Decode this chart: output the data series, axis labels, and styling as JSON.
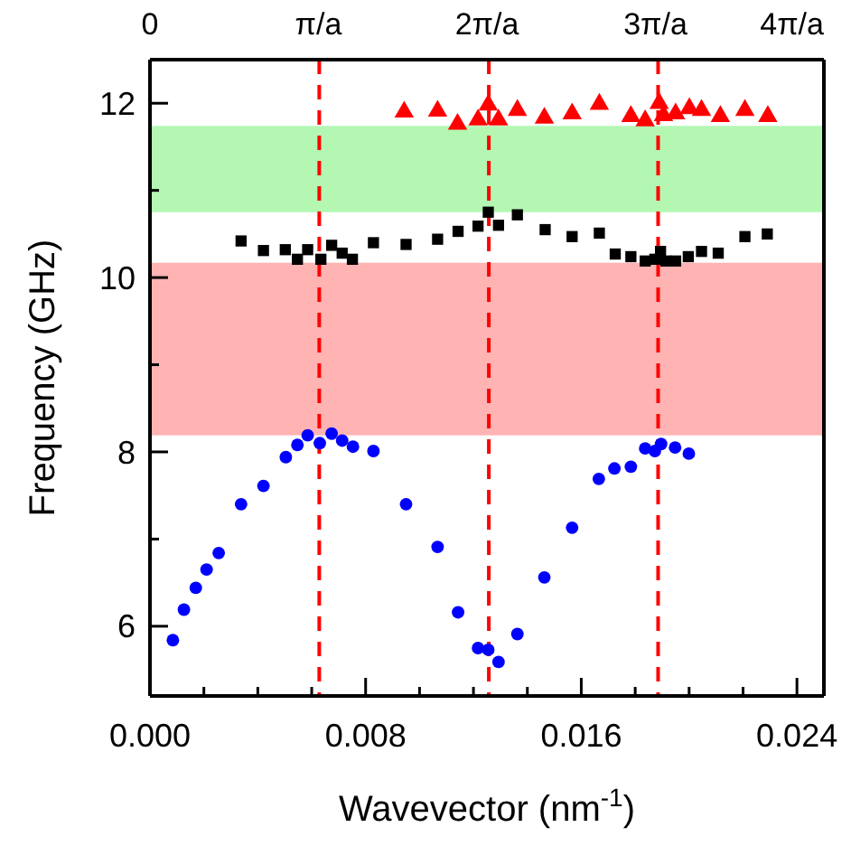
{
  "chart_data": {
    "type": "scatter",
    "xlabel": "Wavevector (nm$^{-1}$)",
    "ylabel": "Frequency  (GHz)",
    "xlim": [
      0,
      0.025
    ],
    "ylim": [
      5.2,
      12.5
    ],
    "xticks": [
      {
        "value": 0,
        "label": "0.000"
      },
      {
        "value": 0.002,
        "label": null
      },
      {
        "value": 0.004,
        "label": null
      },
      {
        "value": 0.006,
        "label": null
      },
      {
        "value": 0.008,
        "label": "0.008"
      },
      {
        "value": 0.01,
        "label": null
      },
      {
        "value": 0.012,
        "label": null
      },
      {
        "value": 0.014,
        "label": null
      },
      {
        "value": 0.016,
        "label": "0.016"
      },
      {
        "value": 0.018,
        "label": null
      },
      {
        "value": 0.02,
        "label": null
      },
      {
        "value": 0.022,
        "label": null
      },
      {
        "value": 0.024,
        "label": "0.024"
      }
    ],
    "yticks": [
      6,
      {
        "value": 7,
        "label": null
      },
      8,
      {
        "value": 9,
        "label": null
      },
      10,
      {
        "value": 11,
        "label": null
      },
      12
    ],
    "x2lim": [
      0,
      4.0
    ],
    "x2ticks": [
      0,
      {
        "value": 1,
        "label": "π/a"
      },
      {
        "value": 2,
        "label": "2π/a"
      },
      {
        "value": 3,
        "label": "3π/a"
      },
      {
        "value": 4,
        "label": "4π/a"
      }
    ],
    "grid": false,
    "bands": [
      {
        "axis": "y",
        "from": 10.75,
        "to": 11.74,
        "color": "#b3f7b3"
      },
      {
        "axis": "y",
        "from": 8.19,
        "to": 10.17,
        "color": "#ffb3b3"
      }
    ],
    "ref_lines": [
      {
        "axis": "x",
        "value": 0.00628,
        "color": "#ff0000",
        "line_style": "dashed"
      },
      {
        "axis": "x",
        "value": 0.01257,
        "color": "#ff0000",
        "line_style": "dashed"
      },
      {
        "axis": "x",
        "value": 0.01885,
        "color": "#ff0000",
        "line_style": "dashed"
      }
    ],
    "series": [
      {
        "color": "#ff0000",
        "marker": "triangle",
        "x": [
          0.00943,
          0.01067,
          0.01141,
          0.01217,
          0.01255,
          0.01293,
          0.01363,
          0.01463,
          0.01566,
          0.01667,
          0.01784,
          0.01837,
          0.01889,
          0.01905,
          0.0195,
          0.02001,
          0.02046,
          0.02116,
          0.02207,
          0.02292
        ],
        "values": [
          11.9,
          11.91,
          11.76,
          11.81,
          11.98,
          11.81,
          11.92,
          11.83,
          11.88,
          11.99,
          11.85,
          11.8,
          12.0,
          11.86,
          11.88,
          11.94,
          11.92,
          11.85,
          11.92,
          11.85
        ]
      },
      {
        "color": "#000000",
        "marker": "square",
        "x": [
          0.00338,
          0.00421,
          0.00502,
          0.00547,
          0.00585,
          0.00634,
          0.00674,
          0.00713,
          0.00751,
          0.00829,
          0.0095,
          0.01067,
          0.01143,
          0.01217,
          0.01255,
          0.01293,
          0.01363,
          0.01466,
          0.01566,
          0.01667,
          0.01726,
          0.01784,
          0.01837,
          0.01873,
          0.01894,
          0.01914,
          0.0195,
          0.01997,
          0.02046,
          0.02108,
          0.02207,
          0.0229
        ],
        "values": [
          10.42,
          10.31,
          10.32,
          10.21,
          10.32,
          10.21,
          10.37,
          10.28,
          10.21,
          10.4,
          10.38,
          10.44,
          10.53,
          10.59,
          10.75,
          10.6,
          10.72,
          10.55,
          10.47,
          10.51,
          10.27,
          10.24,
          10.19,
          10.21,
          10.3,
          10.19,
          10.19,
          10.24,
          10.3,
          10.28,
          10.47,
          10.5
        ]
      },
      {
        "color": "#0000ff",
        "marker": "circle",
        "x": [
          0.00085,
          0.00126,
          0.0017,
          0.0021,
          0.00255,
          0.00338,
          0.00421,
          0.00504,
          0.00547,
          0.00585,
          0.0063,
          0.00674,
          0.00713,
          0.00753,
          0.00829,
          0.0095,
          0.01067,
          0.01143,
          0.01217,
          0.01255,
          0.01293,
          0.01363,
          0.01463,
          0.01566,
          0.01665,
          0.01723,
          0.01784,
          0.01837,
          0.01873,
          0.01896,
          0.01948,
          0.01999
        ],
        "values": [
          5.84,
          6.19,
          6.44,
          6.65,
          6.84,
          7.4,
          7.61,
          7.94,
          8.08,
          8.19,
          8.1,
          8.21,
          8.13,
          8.06,
          8.01,
          7.4,
          6.91,
          6.16,
          5.75,
          5.73,
          5.59,
          5.91,
          6.56,
          7.13,
          7.69,
          7.81,
          7.83,
          8.04,
          8.01,
          8.09,
          8.05,
          7.98
        ]
      }
    ]
  }
}
